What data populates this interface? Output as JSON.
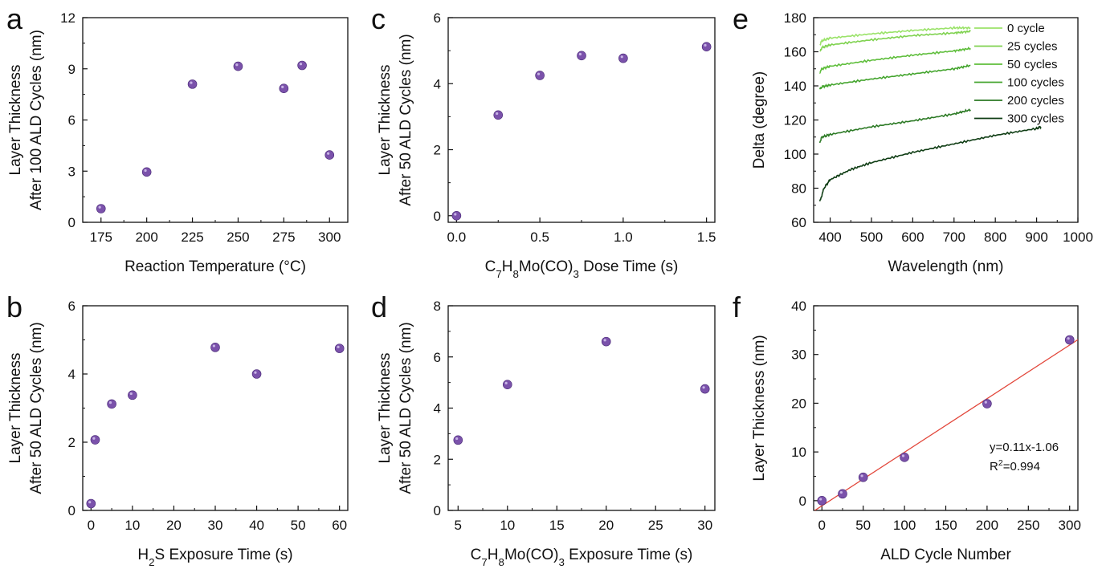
{
  "chart_data": [
    {
      "panel": "a",
      "type": "scatter",
      "x": [
        175,
        200,
        225,
        250,
        275,
        285,
        300
      ],
      "y": [
        0.8,
        2.95,
        8.1,
        9.15,
        7.85,
        9.2,
        3.95
      ],
      "xlabel": "Reaction Temperature (°C)",
      "ylabel_lines": [
        "Layer Thickness",
        "After 100 ALD Cycles (nm)"
      ],
      "xlim": [
        165,
        310
      ],
      "ylim": [
        0,
        12
      ],
      "xticks": [
        175,
        200,
        225,
        250,
        275,
        300
      ],
      "yticks": [
        0,
        3,
        6,
        9,
        12
      ],
      "marker_color": "#7b52ab"
    },
    {
      "panel": "b",
      "type": "scatter",
      "x": [
        0,
        1,
        5,
        10,
        30,
        40,
        60
      ],
      "y": [
        0.2,
        2.07,
        3.12,
        3.38,
        4.78,
        4.0,
        4.75
      ],
      "xlabel": "H₂S Exposure Time (s)",
      "ylabel_lines": [
        "Layer Thickness",
        "After 50 ALD Cycles (nm)"
      ],
      "xlim": [
        -2,
        62
      ],
      "ylim": [
        0,
        6
      ],
      "xticks": [
        0,
        10,
        20,
        30,
        40,
        50,
        60
      ],
      "yticks": [
        0,
        2,
        4,
        6
      ],
      "marker_color": "#7b52ab"
    },
    {
      "panel": "c",
      "type": "scatter",
      "x": [
        0,
        0.25,
        0.5,
        0.75,
        1.0,
        1.5
      ],
      "y": [
        0.0,
        3.05,
        4.25,
        4.85,
        4.77,
        5.12
      ],
      "xlabel": "C₇H₈Mo(CO)₃ Dose Time (s)",
      "ylabel_lines": [
        "Layer Thickness",
        "After 50 ALD Cycles (nm)"
      ],
      "xlim": [
        -0.05,
        1.55
      ],
      "ylim": [
        -0.2,
        6
      ],
      "xticks": [
        0.0,
        0.5,
        1.0,
        1.5
      ],
      "yticks": [
        0,
        2,
        4,
        6
      ],
      "marker_color": "#7b52ab"
    },
    {
      "panel": "d",
      "type": "scatter",
      "x": [
        5,
        10,
        20,
        30
      ],
      "y": [
        2.75,
        4.92,
        6.6,
        4.75
      ],
      "xlabel": "C₇H₈Mo(CO)₃ Exposure Time (s)",
      "ylabel_lines": [
        "Layer Thickness",
        "After 50 ALD Cycles (nm)"
      ],
      "xlim": [
        4,
        31
      ],
      "ylim": [
        0,
        8
      ],
      "xticks": [
        5,
        10,
        15,
        20,
        25,
        30
      ],
      "yticks": [
        0,
        2,
        4,
        6,
        8
      ],
      "marker_color": "#7b52ab"
    },
    {
      "panel": "e",
      "type": "line",
      "xlabel": "Wavelength (nm)",
      "ylabel_lines": [
        "Delta (degree)"
      ],
      "xlim": [
        360,
        1000
      ],
      "ylim": [
        60,
        180
      ],
      "xticks": [
        400,
        500,
        600,
        700,
        800,
        900,
        1000
      ],
      "yticks": [
        60,
        80,
        100,
        120,
        140,
        160,
        180
      ],
      "series": [
        {
          "name": "0 cycle",
          "color": "#9be36a",
          "x": [
            375,
            380,
            400,
            500,
            600,
            700,
            740
          ],
          "y": [
            164,
            166.5,
            168,
            170.5,
            172.5,
            174,
            174
          ]
        },
        {
          "name": "25 cycles",
          "color": "#7fd24f",
          "x": [
            375,
            380,
            400,
            500,
            600,
            700,
            740
          ],
          "y": [
            160,
            162.5,
            164,
            167,
            169.5,
            171,
            172
          ]
        },
        {
          "name": "50 cycles",
          "color": "#5fbe3c",
          "x": [
            375,
            380,
            400,
            500,
            600,
            700,
            740
          ],
          "y": [
            148,
            150,
            151.5,
            155,
            158,
            160.5,
            162
          ]
        },
        {
          "name": "100 cycles",
          "color": "#45a52f",
          "x": [
            375,
            380,
            400,
            500,
            600,
            700,
            740
          ],
          "y": [
            138,
            139.5,
            140.5,
            144,
            147,
            150,
            152
          ]
        },
        {
          "name": "200 cycles",
          "color": "#2c7a25",
          "x": [
            375,
            380,
            400,
            500,
            600,
            700,
            740
          ],
          "y": [
            107,
            110,
            111.5,
            116,
            119.5,
            123.5,
            126
          ]
        },
        {
          "name": "300 cycles",
          "color": "#0f3d14",
          "x": [
            375,
            385,
            400,
            450,
            500,
            600,
            700,
            800,
            900,
            910
          ],
          "y": [
            72,
            80,
            85,
            91,
            95,
            101,
            106,
            111,
            115,
            116
          ]
        }
      ]
    },
    {
      "panel": "f",
      "type": "scatter",
      "x": [
        0,
        25,
        50,
        100,
        200,
        300
      ],
      "y": [
        0,
        1.4,
        4.8,
        8.9,
        19.9,
        33.0
      ],
      "fit": {
        "slope": 0.11,
        "intercept": -1.06,
        "color": "#e2463a"
      },
      "annotations": [
        "y=0.11x-1.06",
        "R²=0.994"
      ],
      "xlabel": "ALD Cycle Number",
      "ylabel_lines": [
        "Layer Thickness (nm)"
      ],
      "xlim": [
        -10,
        310
      ],
      "ylim": [
        -2,
        40
      ],
      "xticks": [
        0,
        50,
        100,
        150,
        200,
        250,
        300
      ],
      "yticks": [
        0,
        10,
        20,
        30,
        40
      ],
      "marker_color": "#7b52ab"
    }
  ]
}
